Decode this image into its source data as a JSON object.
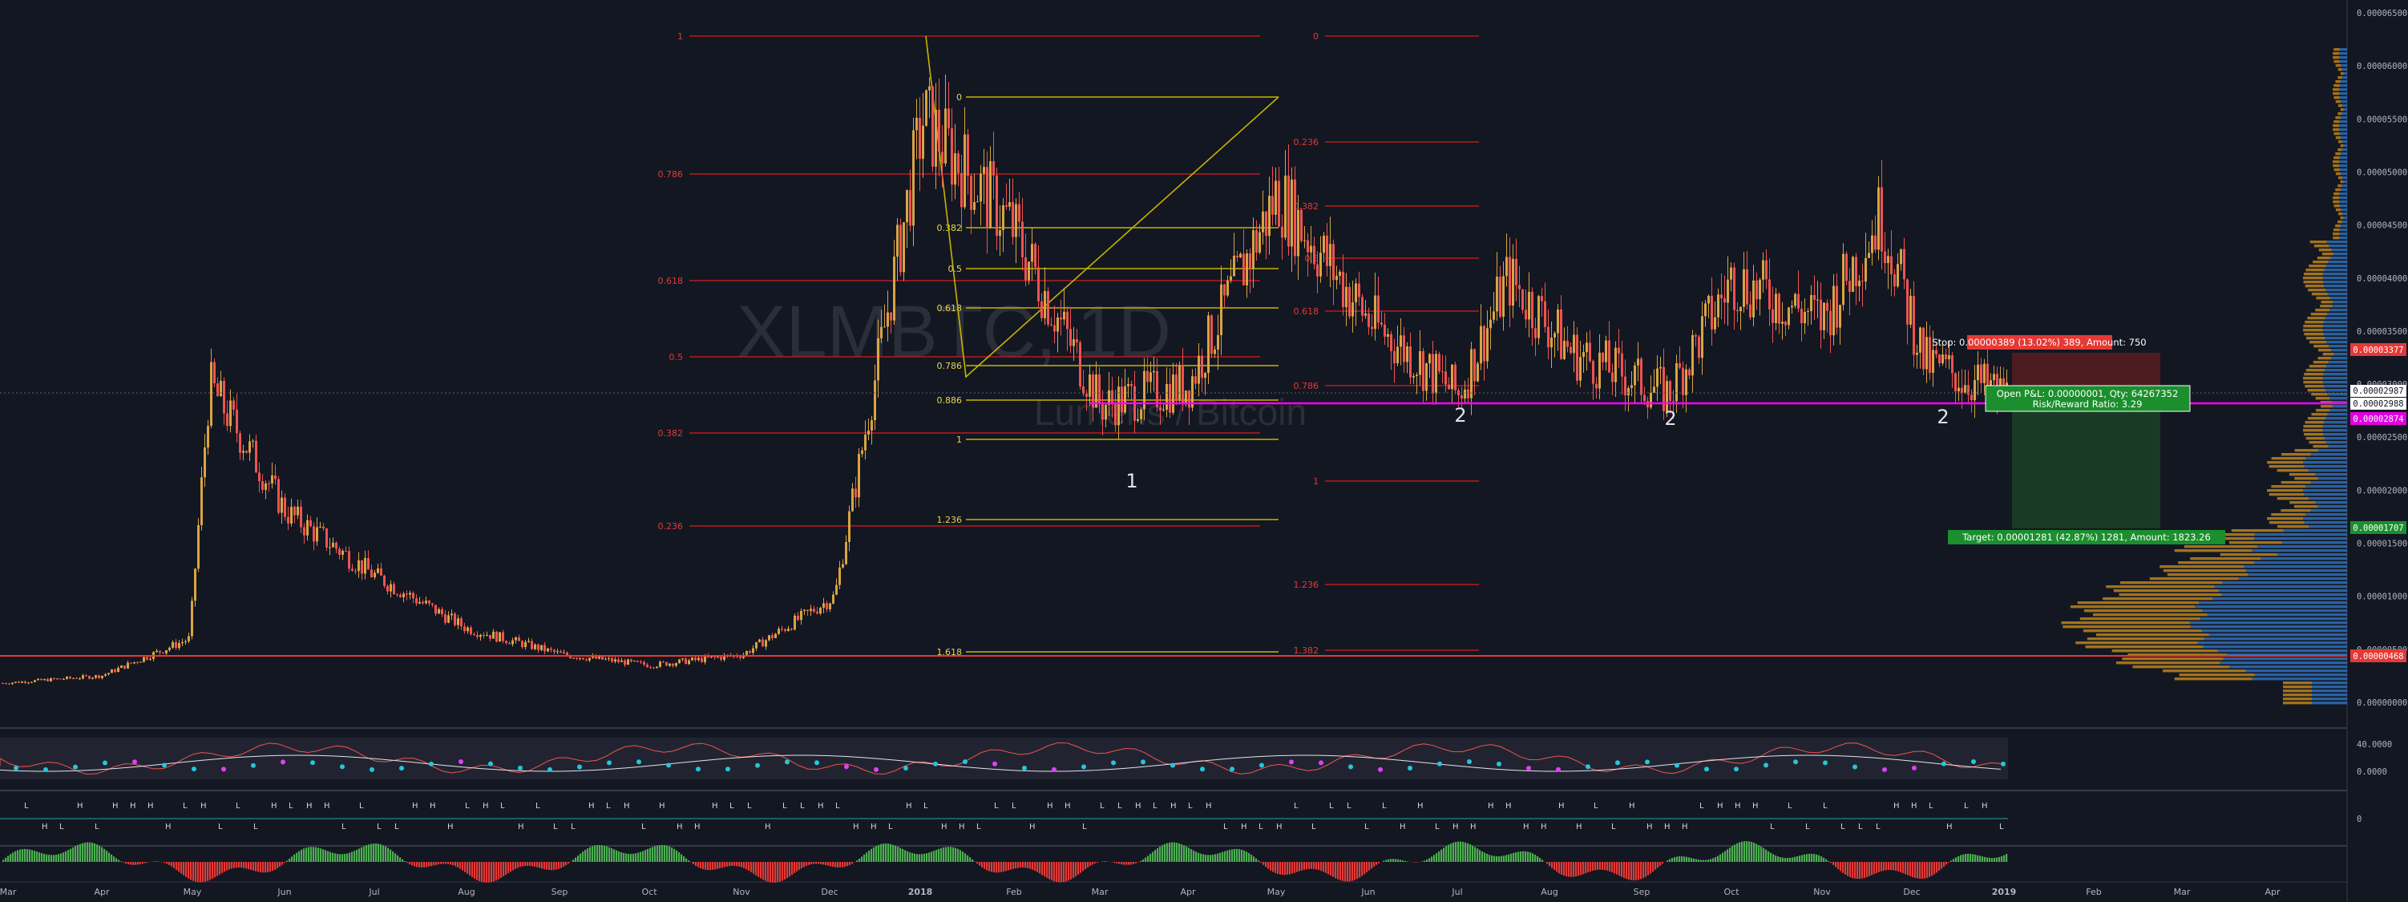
{
  "colors": {
    "background": "#131722",
    "up": "#d9a441",
    "down": "#ef5350",
    "fib_red": "#b71c1c",
    "fib_yellow": "#c8b400",
    "support_magenta": "#ff00ff",
    "stop_red": "#e53935",
    "target_green": "#1b8f2e",
    "profile_blue": "#2e6fb7",
    "profile_orange": "#c88a1b",
    "axis_text": "#b2b5be"
  },
  "chart_data": {
    "type": "candlestick",
    "symbol_watermark": "XLMBTC, 1D",
    "name_watermark": "Lumens / Bitcoin",
    "x_axis": {
      "labels": [
        "Mar",
        "Apr",
        "May",
        "Jun",
        "Jul",
        "Aug",
        "Sep",
        "Oct",
        "Nov",
        "Dec",
        "2018",
        "Feb",
        "Mar",
        "Apr",
        "May",
        "Jun",
        "Jul",
        "Aug",
        "Sep",
        "Oct",
        "Nov",
        "Dec",
        "2019",
        "Feb",
        "Mar",
        "Apr"
      ]
    },
    "y_axis": {
      "scale": "linear",
      "range": [
        0.0,
        6.6e-05
      ],
      "ticks": [
        "0.00006500",
        "0.00006000",
        "0.00005500",
        "0.00005000",
        "0.00004500",
        "0.00004000",
        "0.00003500",
        "0.00003000",
        "0.00002500",
        "0.00002000",
        "0.00001500",
        "0.00001000",
        "0.00000500",
        "0.00000000"
      ]
    },
    "price_series": [
      {
        "t": "2017-03",
        "v": 1.8e-06
      },
      {
        "t": "2017-04",
        "v": 2.5e-06
      },
      {
        "t": "2017-05",
        "v": 6e-06
      },
      {
        "t": "2017-05-15",
        "v": 3e-05
      },
      {
        "t": "2017-06",
        "v": 1.8e-05
      },
      {
        "t": "2017-07",
        "v": 1.2e-05
      },
      {
        "t": "2017-08",
        "v": 7e-06
      },
      {
        "t": "2017-09",
        "v": 4.5e-06
      },
      {
        "t": "2017-10",
        "v": 3.5e-06
      },
      {
        "t": "2017-11",
        "v": 4.5e-06
      },
      {
        "t": "2017-12",
        "v": 1e-05
      },
      {
        "t": "2018-01",
        "v": 5.5e-05
      },
      {
        "t": "2018-02",
        "v": 4.5e-05
      },
      {
        "t": "2018-03",
        "v": 2.8e-05
      },
      {
        "t": "2018-04",
        "v": 3e-05
      },
      {
        "t": "2018-05",
        "v": 4.8e-05
      },
      {
        "t": "2018-06",
        "v": 3.6e-05
      },
      {
        "t": "2018-07",
        "v": 2.9e-05
      },
      {
        "t": "2018-07-20",
        "v": 4e-05
      },
      {
        "t": "2018-08",
        "v": 3.3e-05
      },
      {
        "t": "2018-09",
        "v": 2.9e-05
      },
      {
        "t": "2018-10",
        "v": 4e-05
      },
      {
        "t": "2018-11",
        "v": 3.6e-05
      },
      {
        "t": "2018-11-20",
        "v": 4.6e-05
      },
      {
        "t": "2018-12",
        "v": 3.2e-05
      },
      {
        "t": "2018-12-20",
        "v": 2.9e-05
      }
    ],
    "fib_red_left": [
      "1",
      "0.786",
      "0.618",
      "0.5",
      "0.382",
      "0.236"
    ],
    "fib_red_right": [
      "0",
      "0.236",
      "0.382",
      "0.5",
      "0.618",
      "0.786",
      "1",
      "1.236",
      "1.382"
    ],
    "fib_yellow": [
      "0",
      "0.382",
      "0.5",
      "0.618",
      "0.786",
      "0.886",
      "1",
      "1.236",
      "1.618"
    ],
    "wave_labels": [
      "1",
      "2",
      "2",
      "2"
    ],
    "price_labels": {
      "stop": "0.00003377",
      "current_a": "0.00002987",
      "current_b": "0.00002988",
      "support": "0.00002874",
      "target": "0.00001707",
      "low_line": "0.00000468"
    },
    "position_box": {
      "stop_text": "Stop: 0.00000389 (13.02%) 389, Amount: 750",
      "pnl_text": "Open P&L: 0.00000001, Qty: 64267352",
      "rr_text": "Risk/Reward Ratio: 3.29",
      "target_text": "Target: 0.00001281 (42.87%) 1281, Amount: 1823.26"
    },
    "indicator1_ticks": [
      "40.0000",
      "0.0000"
    ],
    "indicator2_ticks": [
      "0"
    ]
  }
}
